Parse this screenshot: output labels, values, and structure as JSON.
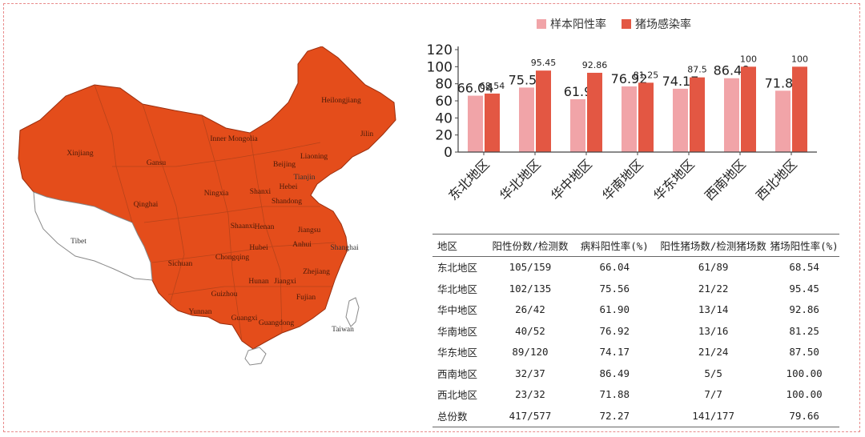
{
  "map": {
    "fill_color": "#e44d1b",
    "labels": [
      "Xinjiang",
      "Tibet",
      "Qinghai",
      "Gansu",
      "Inner Mongolia",
      "Heilongjiang",
      "Jilin",
      "Liaoning",
      "Beijing",
      "Tianjin",
      "Hebei",
      "Shanxi",
      "Shandong",
      "Ningxia",
      "Shaanxi",
      "Henan",
      "Jiangsu",
      "Shanghai",
      "Anhui",
      "Hubei",
      "Sichuan",
      "Chongqing",
      "Hunan",
      "Jiangxi",
      "Zhejiang",
      "Guizhou",
      "Fujian",
      "Yunnan",
      "Guangxi",
      "Guangdong",
      "Taiwan"
    ]
  },
  "chart_data": {
    "type": "bar",
    "categories": [
      "东北地区",
      "华北地区",
      "华中地区",
      "华南地区",
      "华东地区",
      "西南地区",
      "西北地区"
    ],
    "series": [
      {
        "name": "样本阳性率",
        "color": "#f1a4a8",
        "values": [
          66.04,
          75.56,
          61.9,
          76.92,
          74.17,
          86.49,
          71.88
        ]
      },
      {
        "name": "猪场感染率",
        "color": "#e35743",
        "values": [
          68.54,
          95.45,
          92.86,
          81.25,
          87.5,
          100,
          100
        ]
      }
    ],
    "series1_labels": [
      "66.04",
      "75.56",
      "61.9",
      "76.92",
      "74.17",
      "86.49",
      "71.88"
    ],
    "series2_labels": [
      "68.54",
      "95.45",
      "92.86",
      "81.25",
      "87.5",
      "100",
      "100"
    ],
    "yticks": [
      "0",
      "20",
      "40",
      "60",
      "80",
      "100",
      "120"
    ],
    "ylim": [
      0,
      120
    ],
    "legend": "top-center",
    "grid": false
  },
  "table": {
    "headers": [
      "地区",
      "阳性份数/检测数",
      "病料阳性率(%)",
      "阳性猪场数/检测猪场数",
      "猪场阳性率(%)"
    ],
    "rows": [
      [
        "东北地区",
        "105/159",
        "66.04",
        "61/89",
        "68.54"
      ],
      [
        "华北地区",
        "102/135",
        "75.56",
        "21/22",
        "95.45"
      ],
      [
        "华中地区",
        "26/42",
        "61.90",
        "13/14",
        "92.86"
      ],
      [
        "华南地区",
        "40/52",
        "76.92",
        "13/16",
        "81.25"
      ],
      [
        "华东地区",
        "89/120",
        "74.17",
        "21/24",
        "87.50"
      ],
      [
        "西南地区",
        "32/37",
        "86.49",
        "5/5",
        "100.00"
      ],
      [
        "西北地区",
        "23/32",
        "71.88",
        "7/7",
        "100.00"
      ],
      [
        "总份数",
        "417/577",
        "72.27",
        "141/177",
        "79.66"
      ]
    ]
  }
}
